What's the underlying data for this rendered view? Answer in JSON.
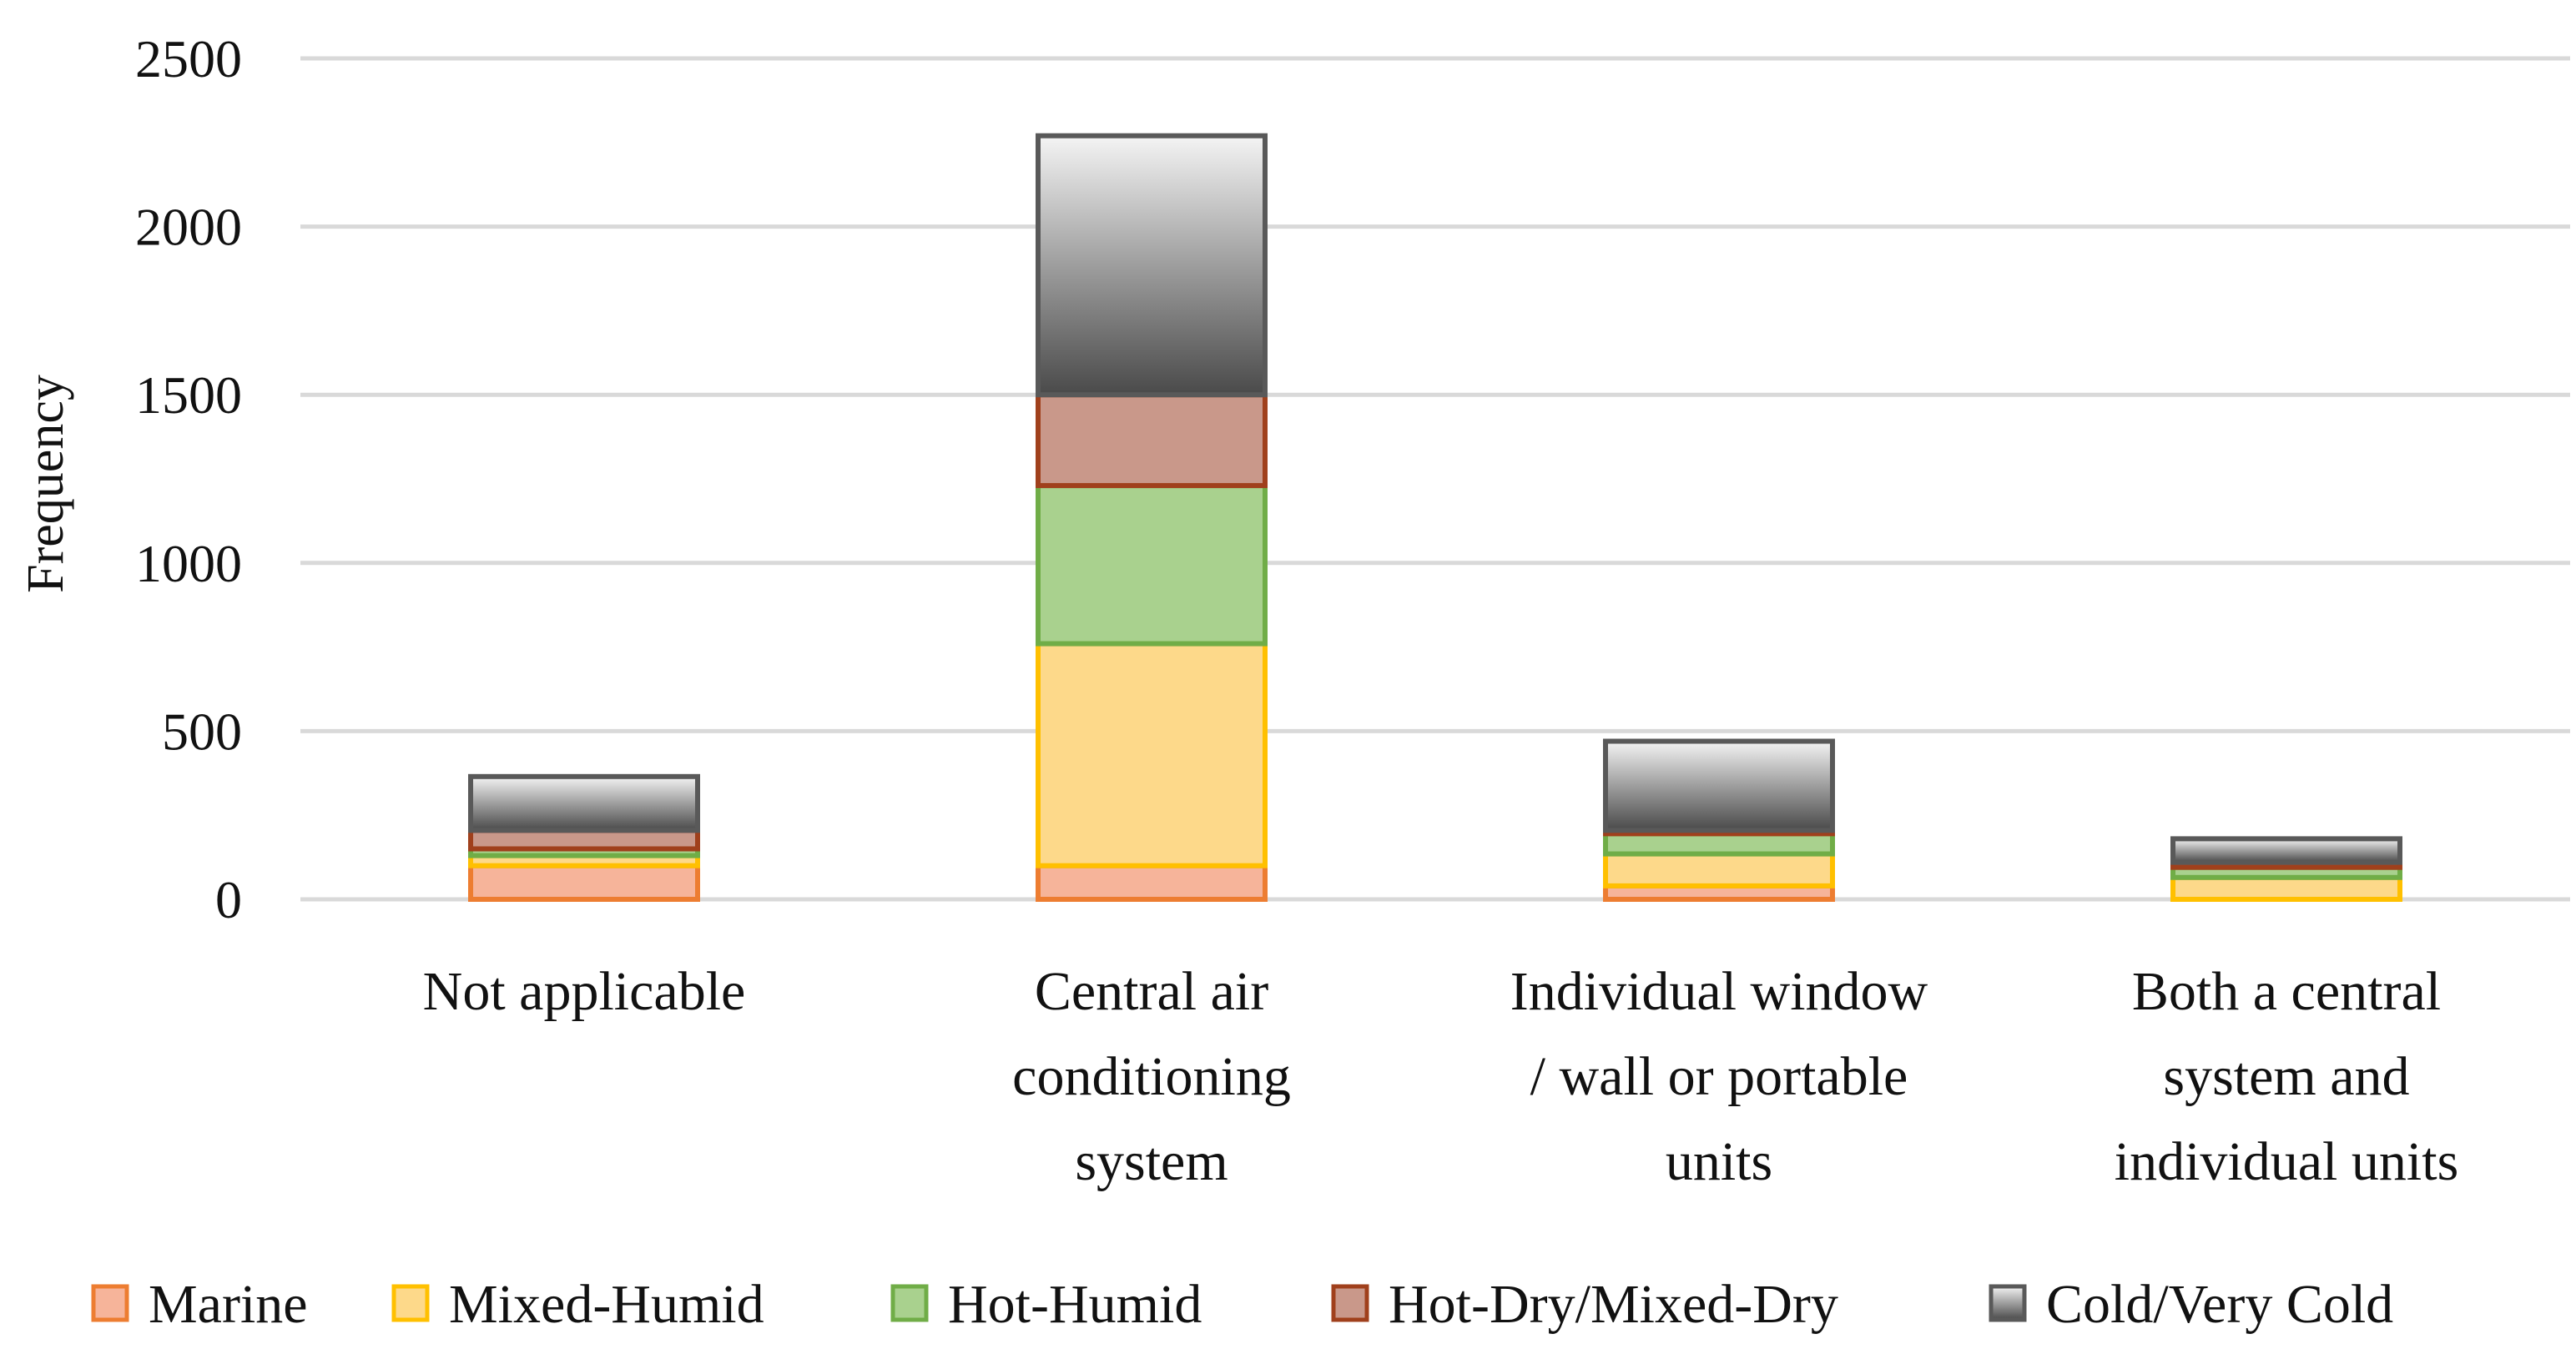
{
  "chart_data": {
    "type": "bar",
    "stacked": true,
    "title": "",
    "xlabel": "",
    "ylabel": "Frequency",
    "ylim": [
      0,
      2500
    ],
    "yticks": [
      0,
      500,
      1000,
      1500,
      2000,
      2500
    ],
    "grid": true,
    "legend_position": "bottom",
    "categories": [
      [
        "Not applicable"
      ],
      [
        "Central air",
        "conditioning",
        "system"
      ],
      [
        "Individual window",
        "/ wall or portable",
        "units"
      ],
      [
        "Both a central",
        "system and",
        "individual units"
      ]
    ],
    "series": [
      {
        "name": "Marine",
        "fill": "#f6b49a",
        "stroke": "#ed7d31",
        "gradient": false,
        "values": [
          100,
          100,
          40,
          0
        ]
      },
      {
        "name": "Mixed-Humid",
        "fill": "#fdd98a",
        "stroke": "#ffc000",
        "gradient": false,
        "values": [
          30,
          660,
          95,
          65
        ]
      },
      {
        "name": "Hot-Humid",
        "fill": "#a9d18e",
        "stroke": "#70ad47",
        "gradient": false,
        "values": [
          20,
          470,
          60,
          30
        ]
      },
      {
        "name": "Hot-Dry/Mixed-Dry",
        "fill": "#c9988a",
        "stroke": "#a0401c",
        "gradient": false,
        "values": [
          55,
          270,
          10,
          15
        ]
      },
      {
        "name": "Cold/Very Cold",
        "fill": "#6e6e6e",
        "stroke": "#595959",
        "gradient": true,
        "values": [
          160,
          770,
          265,
          70
        ]
      }
    ]
  }
}
